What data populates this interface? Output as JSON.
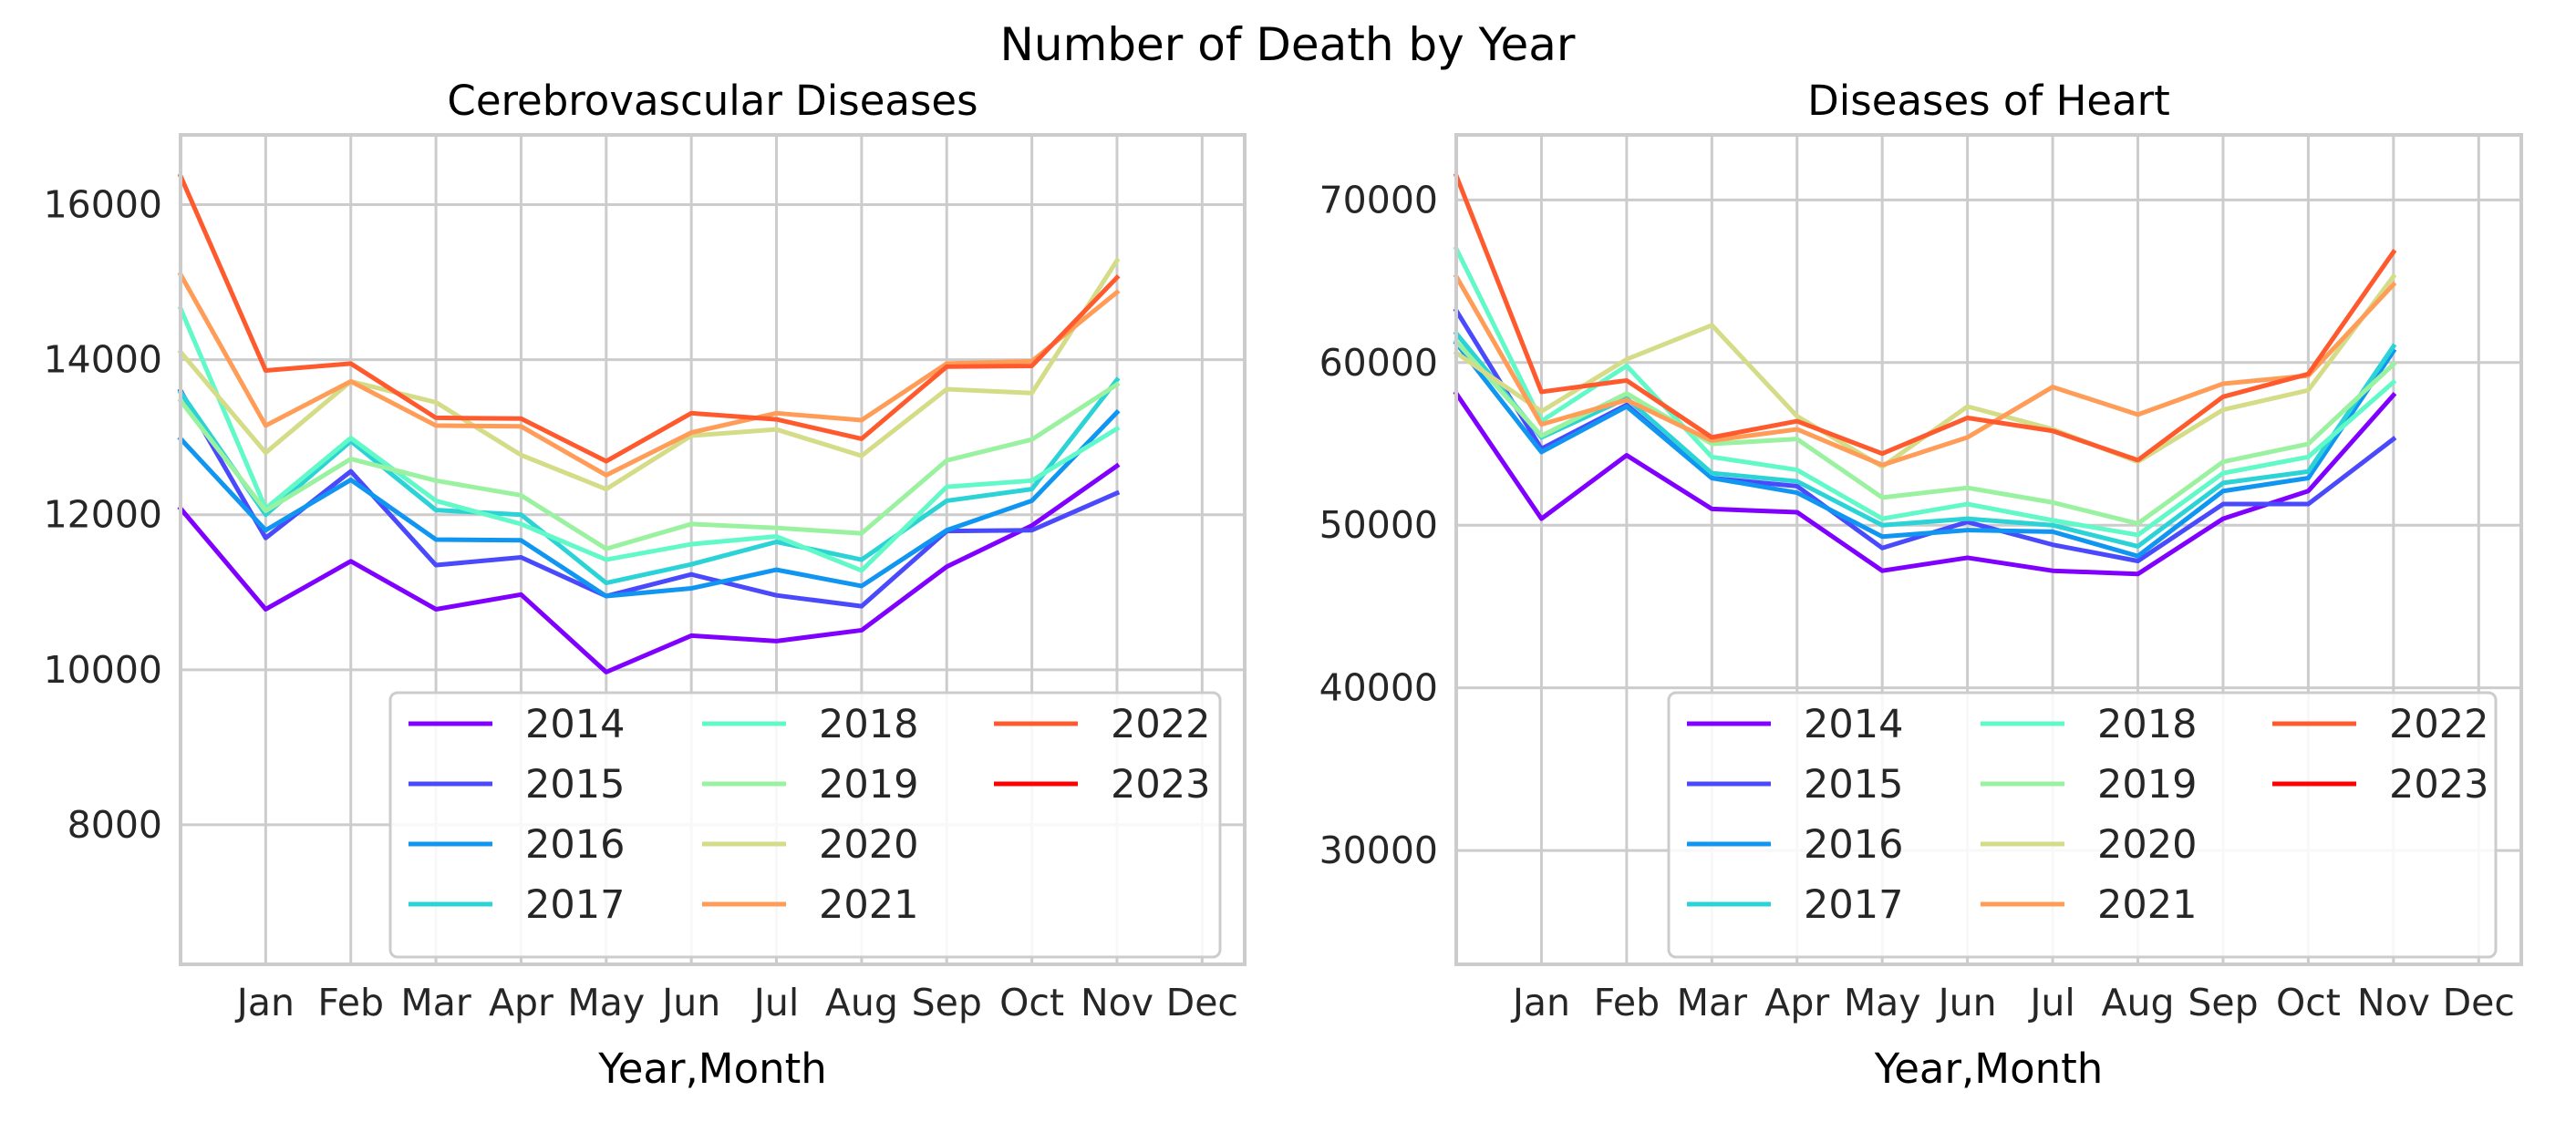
{
  "figure": {
    "title": "Number of Death by Year"
  },
  "chart_data": [
    {
      "type": "line",
      "title": "Cerebrovascular Diseases",
      "xlabel": "Year,Month",
      "ylabel": "",
      "x_tick_labels": [
        "Jan",
        "Feb",
        "Mar",
        "Apr",
        "May",
        "Jun",
        "Jul",
        "Aug",
        "Sep",
        "Oct",
        "Nov",
        "Dec"
      ],
      "y_ticks": [
        8000,
        10000,
        12000,
        14000,
        16000
      ],
      "ylim": [
        6200,
        16900
      ],
      "xlim": [
        0,
        12.5
      ],
      "grid": true,
      "legend": {
        "loc": "lower-right",
        "ncol": 3
      },
      "series": [
        {
          "name": "2014",
          "color": "#8000ff",
          "values": [
            12080,
            10780,
            11400,
            10780,
            10970,
            9970,
            10440,
            10370,
            10510,
            11330,
            11860,
            12630
          ]
        },
        {
          "name": "2015",
          "color": "#4a4afc",
          "values": [
            13600,
            11700,
            12560,
            11350,
            11450,
            10950,
            11230,
            10960,
            10820,
            11790,
            11800,
            12280
          ]
        },
        {
          "name": "2016",
          "color": "#1096f0",
          "values": [
            12980,
            11800,
            12450,
            11680,
            11670,
            10950,
            11050,
            11290,
            11080,
            11800,
            12180,
            13320
          ]
        },
        {
          "name": "2017",
          "color": "#2bd3d6",
          "values": [
            13580,
            12000,
            12950,
            12060,
            12000,
            11120,
            11360,
            11650,
            11420,
            12180,
            12330,
            13740
          ]
        },
        {
          "name": "2018",
          "color": "#62f9c9",
          "values": [
            14660,
            12080,
            12990,
            12180,
            11880,
            11420,
            11620,
            11720,
            11280,
            12360,
            12440,
            13110
          ]
        },
        {
          "name": "2019",
          "color": "#9af2a0",
          "values": [
            13470,
            12050,
            12720,
            12440,
            12250,
            11560,
            11880,
            11830,
            11760,
            12700,
            12970,
            13680
          ]
        },
        {
          "name": "2020",
          "color": "#d4dc88",
          "values": [
            14100,
            12800,
            13720,
            13450,
            12770,
            12330,
            13020,
            13100,
            12760,
            13620,
            13570,
            15280
          ]
        },
        {
          "name": "2021",
          "color": "#ff9d58",
          "values": [
            15100,
            13150,
            13720,
            13150,
            13140,
            12510,
            13060,
            13310,
            13220,
            13950,
            13980,
            14870
          ]
        },
        {
          "name": "2022",
          "color": "#ff5a2d",
          "values": [
            16370,
            13860,
            13950,
            13250,
            13240,
            12690,
            13310,
            13230,
            12980,
            13910,
            13920,
            15060
          ]
        },
        {
          "name": "2023",
          "color": "#ff0000",
          "values": []
        }
      ]
    },
    {
      "type": "line",
      "title": "Diseases of Heart",
      "xlabel": "Year,Month",
      "ylabel": "",
      "x_tick_labels": [
        "Jan",
        "Feb",
        "Mar",
        "Apr",
        "May",
        "Jun",
        "Jul",
        "Aug",
        "Sep",
        "Oct",
        "Nov",
        "Dec"
      ],
      "y_ticks": [
        30000,
        40000,
        50000,
        60000,
        70000
      ],
      "ylim": [
        23000,
        74000
      ],
      "xlim": [
        0,
        12.5
      ],
      "grid": true,
      "legend": {
        "loc": "lower-right",
        "ncol": 3
      },
      "series": [
        {
          "name": "2014",
          "color": "#8000ff",
          "values": [
            58100,
            50400,
            54300,
            51000,
            50800,
            47200,
            48000,
            47200,
            47000,
            50400,
            52100,
            58000
          ]
        },
        {
          "name": "2015",
          "color": "#4a4afc",
          "values": [
            63200,
            54700,
            57400,
            52900,
            52400,
            48600,
            50200,
            48800,
            47800,
            51300,
            51300,
            55300
          ]
        },
        {
          "name": "2016",
          "color": "#1096f0",
          "values": [
            61200,
            54500,
            57300,
            52900,
            52000,
            49300,
            49700,
            49600,
            48100,
            52100,
            52900,
            60700
          ]
        },
        {
          "name": "2017",
          "color": "#2bd3d6",
          "values": [
            61800,
            55400,
            57800,
            53200,
            52700,
            50000,
            50400,
            50000,
            48700,
            52600,
            53300,
            61000
          ]
        },
        {
          "name": "2018",
          "color": "#62f9c9",
          "values": [
            67000,
            56400,
            59800,
            54200,
            53400,
            50400,
            51300,
            50300,
            49400,
            53200,
            54200,
            58800
          ]
        },
        {
          "name": "2019",
          "color": "#9af2a0",
          "values": [
            61300,
            55500,
            58100,
            55000,
            55300,
            51700,
            52300,
            51400,
            50100,
            53900,
            55000,
            59900
          ]
        },
        {
          "name": "2020",
          "color": "#d4dc88",
          "values": [
            60600,
            57000,
            60200,
            62300,
            56700,
            53600,
            57300,
            55900,
            53900,
            57100,
            58300,
            65300
          ]
        },
        {
          "name": "2021",
          "color": "#ff9d58",
          "values": [
            65300,
            56200,
            57700,
            55200,
            55900,
            53700,
            55400,
            58500,
            56800,
            58700,
            59200,
            64800
          ]
        },
        {
          "name": "2022",
          "color": "#ff5a2d",
          "values": [
            71500,
            58200,
            58900,
            55400,
            56400,
            54400,
            56600,
            55800,
            54000,
            57900,
            59300,
            66800
          ]
        },
        {
          "name": "2023",
          "color": "#ff0000",
          "values": []
        }
      ]
    }
  ]
}
